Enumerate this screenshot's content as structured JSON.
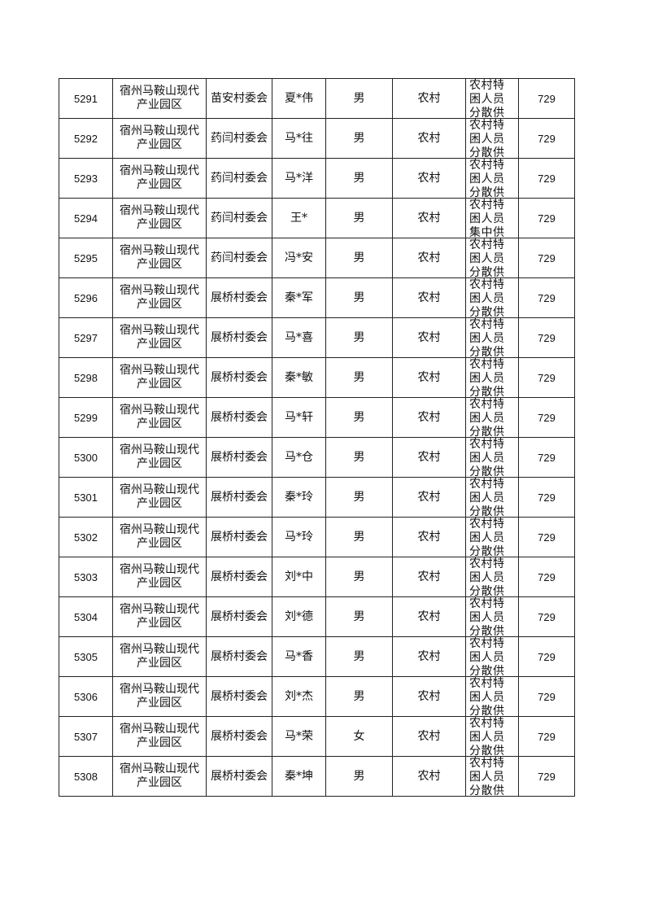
{
  "rows": [
    {
      "no": "5291",
      "area": "宿州马鞍山现代产业园区",
      "village": "苗安村委会",
      "name": "夏*伟",
      "gender": "男",
      "type": "农村",
      "category": "农村特困人员分散供养",
      "amount": "729"
    },
    {
      "no": "5292",
      "area": "宿州马鞍山现代产业园区",
      "village": "药闫村委会",
      "name": "马*往",
      "gender": "男",
      "type": "农村",
      "category": "农村特困人员分散供养",
      "amount": "729"
    },
    {
      "no": "5293",
      "area": "宿州马鞍山现代产业园区",
      "village": "药闫村委会",
      "name": "马*洋",
      "gender": "男",
      "type": "农村",
      "category": "农村特困人员分散供养",
      "amount": "729"
    },
    {
      "no": "5294",
      "area": "宿州马鞍山现代产业园区",
      "village": "药闫村委会",
      "name": "王*",
      "gender": "男",
      "type": "农村",
      "category": "农村特困人员集中供养",
      "amount": "729"
    },
    {
      "no": "5295",
      "area": "宿州马鞍山现代产业园区",
      "village": "药闫村委会",
      "name": "冯*安",
      "gender": "男",
      "type": "农村",
      "category": "农村特困人员分散供养",
      "amount": "729"
    },
    {
      "no": "5296",
      "area": "宿州马鞍山现代产业园区",
      "village": "展桥村委会",
      "name": "秦*军",
      "gender": "男",
      "type": "农村",
      "category": "农村特困人员分散供养",
      "amount": "729"
    },
    {
      "no": "5297",
      "area": "宿州马鞍山现代产业园区",
      "village": "展桥村委会",
      "name": "马*喜",
      "gender": "男",
      "type": "农村",
      "category": "农村特困人员分散供养",
      "amount": "729"
    },
    {
      "no": "5298",
      "area": "宿州马鞍山现代产业园区",
      "village": "展桥村委会",
      "name": "秦*敏",
      "gender": "男",
      "type": "农村",
      "category": "农村特困人员分散供养",
      "amount": "729"
    },
    {
      "no": "5299",
      "area": "宿州马鞍山现代产业园区",
      "village": "展桥村委会",
      "name": "马*轩",
      "gender": "男",
      "type": "农村",
      "category": "农村特困人员分散供养",
      "amount": "729"
    },
    {
      "no": "5300",
      "area": "宿州马鞍山现代产业园区",
      "village": "展桥村委会",
      "name": "马*仓",
      "gender": "男",
      "type": "农村",
      "category": "农村特困人员分散供养",
      "amount": "729"
    },
    {
      "no": "5301",
      "area": "宿州马鞍山现代产业园区",
      "village": "展桥村委会",
      "name": "秦*玲",
      "gender": "男",
      "type": "农村",
      "category": "农村特困人员分散供养",
      "amount": "729"
    },
    {
      "no": "5302",
      "area": "宿州马鞍山现代产业园区",
      "village": "展桥村委会",
      "name": "马*玲",
      "gender": "男",
      "type": "农村",
      "category": "农村特困人员分散供养",
      "amount": "729"
    },
    {
      "no": "5303",
      "area": "宿州马鞍山现代产业园区",
      "village": "展桥村委会",
      "name": "刘*中",
      "gender": "男",
      "type": "农村",
      "category": "农村特困人员分散供养",
      "amount": "729"
    },
    {
      "no": "5304",
      "area": "宿州马鞍山现代产业园区",
      "village": "展桥村委会",
      "name": "刘*德",
      "gender": "男",
      "type": "农村",
      "category": "农村特困人员分散供养",
      "amount": "729"
    },
    {
      "no": "5305",
      "area": "宿州马鞍山现代产业园区",
      "village": "展桥村委会",
      "name": "马*香",
      "gender": "男",
      "type": "农村",
      "category": "农村特困人员分散供养",
      "amount": "729"
    },
    {
      "no": "5306",
      "area": "宿州马鞍山现代产业园区",
      "village": "展桥村委会",
      "name": "刘*杰",
      "gender": "男",
      "type": "农村",
      "category": "农村特困人员分散供养",
      "amount": "729"
    },
    {
      "no": "5307",
      "area": "宿州马鞍山现代产业园区",
      "village": "展桥村委会",
      "name": "马*荣",
      "gender": "女",
      "type": "农村",
      "category": "农村特困人员分散供养",
      "amount": "729"
    },
    {
      "no": "5308",
      "area": "宿州马鞍山现代产业园区",
      "village": "展桥村委会",
      "name": "秦*坤",
      "gender": "男",
      "type": "农村",
      "category": "农村特困人员分散供养",
      "amount": "729"
    }
  ]
}
